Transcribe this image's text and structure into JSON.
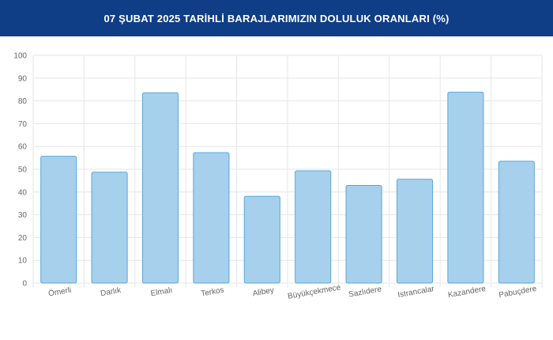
{
  "header": {
    "title": "07 ŞUBAT 2025 TARİHLİ BARAJLARIMIZIN DOLULUK ORANLARI (%)",
    "background_color": "#0f3d86"
  },
  "chart_data": {
    "type": "bar",
    "title": "07 ŞUBAT 2025 TARİHLİ BARAJLARIMIZIN DOLULUK ORANLARI (%)",
    "categories": [
      "Ömerli",
      "Darlık",
      "Elmalı",
      "Terkos",
      "Alibey",
      "Büyükçekmece",
      "Sazlıdere",
      "Istrancalar",
      "Kazandere",
      "Pabuçdere"
    ],
    "values": [
      55.7,
      48.7,
      83.6,
      57.3,
      38.1,
      49.3,
      42.9,
      45.6,
      83.8,
      53.5
    ],
    "ylim": [
      0,
      100
    ],
    "yticks": [
      0,
      10,
      20,
      30,
      40,
      50,
      60,
      70,
      80,
      90,
      100
    ],
    "grid": true,
    "bar_fill": "#a6d0ec",
    "bar_stroke": "#5aa7d6",
    "grid_color": "#e6e6e6"
  }
}
